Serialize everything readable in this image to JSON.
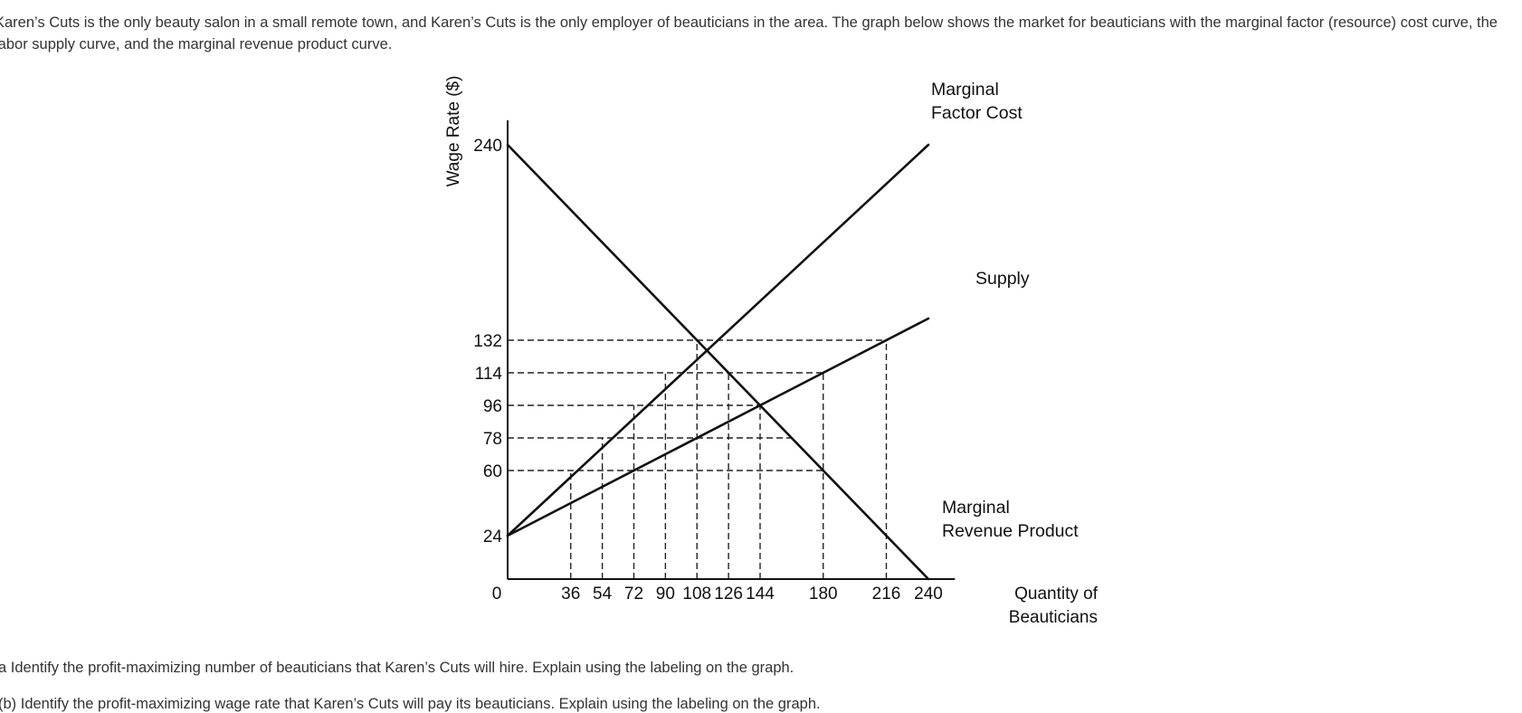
{
  "intro_text": "Karen’s Cuts is the only beauty salon in a small remote town, and Karen’s Cuts is the only employer of beauticians in the area. The graph below shows the market for beauticians with the marginal factor (resource) cost curve, the labor supply curve, and the marginal revenue product curve.",
  "questions": {
    "a": "a Identify the profit-maximizing number of beauticians that Karen’s Cuts will hire. Explain using the labeling on the graph.",
    "b": "(b) Identify the profit-maximizing wage rate that Karen’s Cuts will pay its beauticians. Explain using the labeling on the graph."
  },
  "chart_data": {
    "type": "line",
    "title": "",
    "xlabel": "Quantity of Beauticians",
    "xlabel_lines": [
      "Quantity of",
      "Beauticians"
    ],
    "ylabel": "Wage Rate ($)",
    "origin_label": "0",
    "xlim": [
      0,
      252
    ],
    "ylim": [
      0,
      252
    ],
    "x_ticks": [
      36,
      54,
      72,
      90,
      108,
      126,
      144,
      180,
      216,
      240
    ],
    "y_ticks": [
      24,
      60,
      78,
      96,
      114,
      132,
      240
    ],
    "grid": false,
    "series": [
      {
        "name": "Marginal Factor Cost",
        "label_lines": [
          "Marginal",
          "Factor Cost"
        ],
        "points": [
          [
            0,
            24
          ],
          [
            240,
            240
          ]
        ]
      },
      {
        "name": "Supply",
        "label_lines": [
          "Supply"
        ],
        "points": [
          [
            0,
            24
          ],
          [
            240,
            144
          ]
        ]
      },
      {
        "name": "Marginal Revenue Product",
        "label_lines": [
          "Marginal",
          "Revenue Product"
        ],
        "points": [
          [
            0,
            240
          ],
          [
            240,
            0
          ]
        ]
      }
    ],
    "reference_lines": {
      "horizontal": [
        {
          "y": 132,
          "x_to": 216
        },
        {
          "y": 114,
          "x_to": 180
        },
        {
          "y": 96,
          "x_to": 144
        },
        {
          "y": 78,
          "x_to": 162
        },
        {
          "y": 60,
          "x_to": 180
        }
      ],
      "vertical": [
        {
          "x": 36,
          "y_to": 60
        },
        {
          "x": 54,
          "y_to": 78
        },
        {
          "x": 72,
          "y_to": 96
        },
        {
          "x": 90,
          "y_to": 114
        },
        {
          "x": 108,
          "y_to": 132
        },
        {
          "x": 126,
          "y_to": 114
        },
        {
          "x": 144,
          "y_to": 96
        },
        {
          "x": 180,
          "y_to": 114
        },
        {
          "x": 216,
          "y_to": 132
        }
      ]
    },
    "colors": {
      "curve": "#111111",
      "axis": "#111111",
      "dashed": "#222222"
    }
  }
}
